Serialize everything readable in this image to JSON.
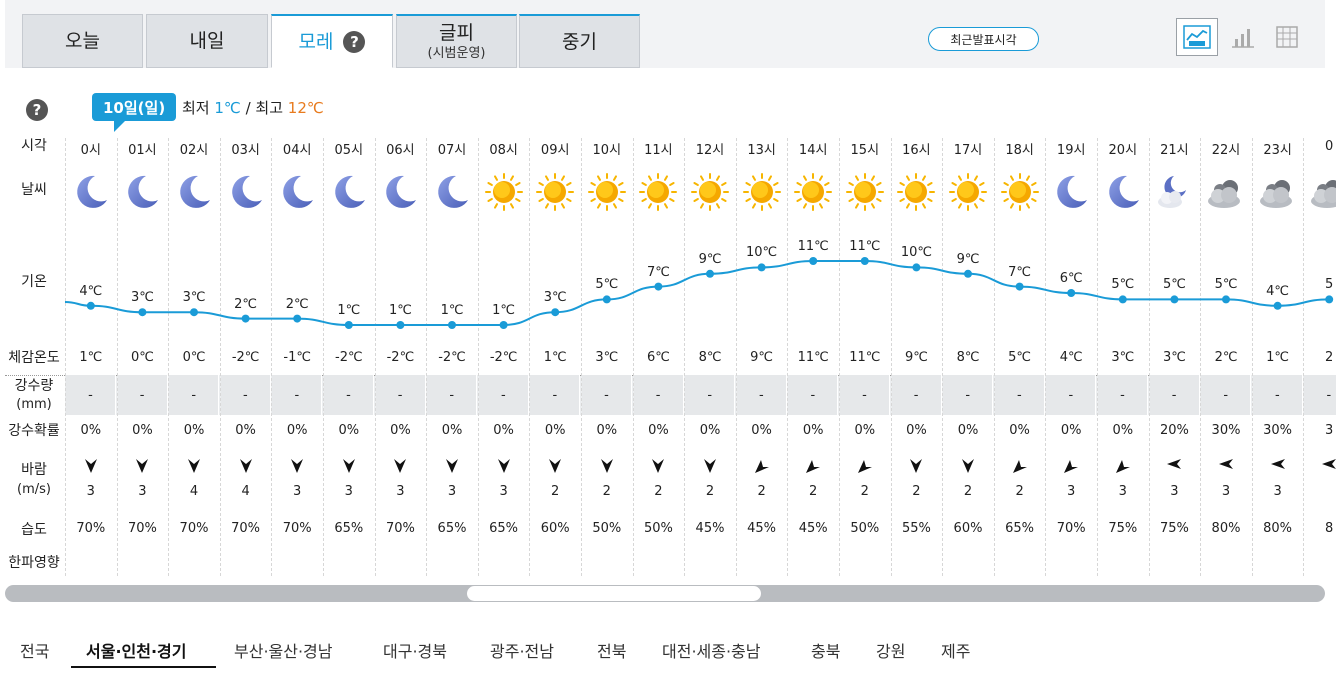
{
  "tabs": [
    {
      "label": "오늘",
      "sub": ""
    },
    {
      "label": "내일",
      "sub": ""
    },
    {
      "label": "모레",
      "sub": ""
    },
    {
      "label": "글피",
      "sub": "(시범운영)"
    },
    {
      "label": "중기",
      "sub": ""
    }
  ],
  "help_mark": "?",
  "latest_button": "최근발표시각",
  "view_icons": [
    "graph-view-icon",
    "bar-chart-icon",
    "table-view-icon"
  ],
  "date_badge": "10일(일)",
  "minmax": {
    "min_label": "최저",
    "min_value": "1℃",
    "sep": "/",
    "max_label": "최고",
    "max_value": "12℃"
  },
  "row_labels": {
    "time": "시각",
    "weather": "날씨",
    "temp": "기온",
    "feels": "체감온도",
    "precip_amount": "강수량",
    "precip_unit": "(mm)",
    "precip_prob": "강수확률",
    "wind": "바람",
    "wind_unit": "(m/s)",
    "humidity": "습도",
    "coldwave": "한파영향"
  },
  "colors": {
    "accent": "#1a9bd7",
    "max_temp": "#e87b1e",
    "moon": "#5b6fc4",
    "sun": "#f7b500"
  },
  "hours": [
    {
      "time": "0시",
      "icon": "moon",
      "temp": "4℃",
      "t": 4,
      "feels": "1℃",
      "precip": "-",
      "prob": "0%",
      "wind_dir": "S",
      "wind": "3",
      "hum": "70%"
    },
    {
      "time": "01시",
      "icon": "moon",
      "temp": "3℃",
      "t": 3,
      "feels": "0℃",
      "precip": "-",
      "prob": "0%",
      "wind_dir": "S",
      "wind": "3",
      "hum": "70%"
    },
    {
      "time": "02시",
      "icon": "moon",
      "temp": "3℃",
      "t": 3,
      "feels": "0℃",
      "precip": "-",
      "prob": "0%",
      "wind_dir": "S",
      "wind": "4",
      "hum": "70%"
    },
    {
      "time": "03시",
      "icon": "moon",
      "temp": "2℃",
      "t": 2,
      "feels": "-2℃",
      "precip": "-",
      "prob": "0%",
      "wind_dir": "S",
      "wind": "4",
      "hum": "70%"
    },
    {
      "time": "04시",
      "icon": "moon",
      "temp": "2℃",
      "t": 2,
      "feels": "-1℃",
      "precip": "-",
      "prob": "0%",
      "wind_dir": "S",
      "wind": "3",
      "hum": "70%"
    },
    {
      "time": "05시",
      "icon": "moon",
      "temp": "1℃",
      "t": 1,
      "feels": "-2℃",
      "precip": "-",
      "prob": "0%",
      "wind_dir": "S",
      "wind": "3",
      "hum": "65%"
    },
    {
      "time": "06시",
      "icon": "moon",
      "temp": "1℃",
      "t": 1,
      "feels": "-2℃",
      "precip": "-",
      "prob": "0%",
      "wind_dir": "S",
      "wind": "3",
      "hum": "70%"
    },
    {
      "time": "07시",
      "icon": "moon",
      "temp": "1℃",
      "t": 1,
      "feels": "-2℃",
      "precip": "-",
      "prob": "0%",
      "wind_dir": "S",
      "wind": "3",
      "hum": "65%"
    },
    {
      "time": "08시",
      "icon": "sun",
      "temp": "1℃",
      "t": 1,
      "feels": "-2℃",
      "precip": "-",
      "prob": "0%",
      "wind_dir": "S",
      "wind": "3",
      "hum": "65%"
    },
    {
      "time": "09시",
      "icon": "sun",
      "temp": "3℃",
      "t": 3,
      "feels": "1℃",
      "precip": "-",
      "prob": "0%",
      "wind_dir": "S",
      "wind": "2",
      "hum": "60%"
    },
    {
      "time": "10시",
      "icon": "sun",
      "temp": "5℃",
      "t": 5,
      "feels": "3℃",
      "precip": "-",
      "prob": "0%",
      "wind_dir": "S",
      "wind": "2",
      "hum": "50%"
    },
    {
      "time": "11시",
      "icon": "sun",
      "temp": "7℃",
      "t": 7,
      "feels": "6℃",
      "precip": "-",
      "prob": "0%",
      "wind_dir": "S",
      "wind": "2",
      "hum": "50%"
    },
    {
      "time": "12시",
      "icon": "sun",
      "temp": "9℃",
      "t": 9,
      "feels": "8℃",
      "precip": "-",
      "prob": "0%",
      "wind_dir": "S",
      "wind": "2",
      "hum": "45%"
    },
    {
      "time": "13시",
      "icon": "sun",
      "temp": "10℃",
      "t": 10,
      "feels": "9℃",
      "precip": "-",
      "prob": "0%",
      "wind_dir": "SW",
      "wind": "2",
      "hum": "45%"
    },
    {
      "time": "14시",
      "icon": "sun",
      "temp": "11℃",
      "t": 11,
      "feels": "11℃",
      "precip": "-",
      "prob": "0%",
      "wind_dir": "SW",
      "wind": "2",
      "hum": "45%"
    },
    {
      "time": "15시",
      "icon": "sun",
      "temp": "11℃",
      "t": 11,
      "feels": "11℃",
      "precip": "-",
      "prob": "0%",
      "wind_dir": "SW",
      "wind": "2",
      "hum": "50%"
    },
    {
      "time": "16시",
      "icon": "sun",
      "temp": "10℃",
      "t": 10,
      "feels": "9℃",
      "precip": "-",
      "prob": "0%",
      "wind_dir": "S",
      "wind": "2",
      "hum": "55%"
    },
    {
      "time": "17시",
      "icon": "sun",
      "temp": "9℃",
      "t": 9,
      "feels": "8℃",
      "precip": "-",
      "prob": "0%",
      "wind_dir": "S",
      "wind": "2",
      "hum": "60%"
    },
    {
      "time": "18시",
      "icon": "sun",
      "temp": "7℃",
      "t": 7,
      "feels": "5℃",
      "precip": "-",
      "prob": "0%",
      "wind_dir": "SW",
      "wind": "2",
      "hum": "65%"
    },
    {
      "time": "19시",
      "icon": "moon",
      "temp": "6℃",
      "t": 6,
      "feels": "4℃",
      "precip": "-",
      "prob": "0%",
      "wind_dir": "SW",
      "wind": "3",
      "hum": "70%"
    },
    {
      "time": "20시",
      "icon": "moon",
      "temp": "5℃",
      "t": 5,
      "feels": "3℃",
      "precip": "-",
      "prob": "0%",
      "wind_dir": "SW",
      "wind": "3",
      "hum": "75%"
    },
    {
      "time": "21시",
      "icon": "moon-cloud",
      "temp": "5℃",
      "t": 5,
      "feels": "3℃",
      "precip": "-",
      "prob": "20%",
      "wind_dir": "W",
      "wind": "3",
      "hum": "75%"
    },
    {
      "time": "22시",
      "icon": "cloud",
      "temp": "5℃",
      "t": 5,
      "feels": "2℃",
      "precip": "-",
      "prob": "30%",
      "wind_dir": "W",
      "wind": "3",
      "hum": "80%"
    },
    {
      "time": "23시",
      "icon": "cloud",
      "temp": "4℃",
      "t": 4,
      "feels": "1℃",
      "precip": "-",
      "prob": "30%",
      "wind_dir": "W",
      "wind": "3",
      "hum": "80%"
    },
    {
      "time": "0",
      "icon": "cloud",
      "temp": "5",
      "t": 5,
      "feels": "2",
      "precip": "-",
      "prob": "3",
      "wind_dir": "W",
      "wind": "",
      "hum": "8"
    }
  ],
  "scrollbar": {
    "position": 0.35
  },
  "regions": [
    {
      "label": "전국",
      "selected": false
    },
    {
      "label": "서울·인천·경기",
      "selected": true
    },
    {
      "label": "부산·울산·경남",
      "selected": false
    },
    {
      "label": "대구·경북",
      "selected": false
    },
    {
      "label": "광주·전남",
      "selected": false
    },
    {
      "label": "전북",
      "selected": false
    },
    {
      "label": "대전·세종·충남",
      "selected": false
    },
    {
      "label": "충북",
      "selected": false
    },
    {
      "label": "강원",
      "selected": false
    },
    {
      "label": "제주",
      "selected": false
    }
  ]
}
